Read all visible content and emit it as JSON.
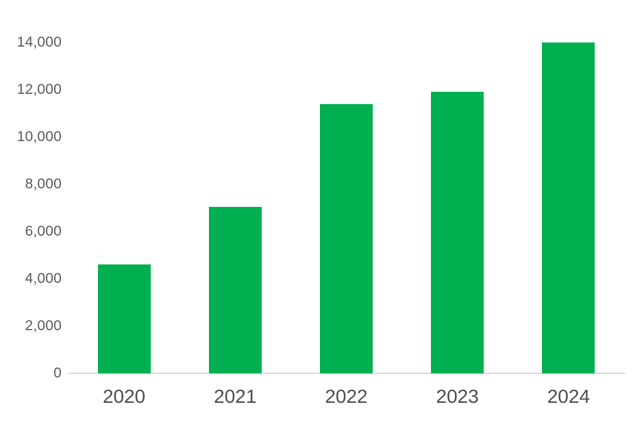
{
  "chart_data": {
    "type": "bar",
    "title": "",
    "xlabel": "",
    "ylabel": "",
    "categories": [
      "2020",
      "2021",
      "2022",
      "2023",
      "2024"
    ],
    "values": [
      4600,
      7050,
      11400,
      11900,
      14000
    ],
    "ylim": [
      0,
      14000
    ],
    "ytick_interval": 2000,
    "ytick_labels": [
      "0",
      "2,000",
      "4,000",
      "6,000",
      "8,000",
      "10,000",
      "12,000",
      "14,000"
    ],
    "grid": false,
    "legend_position": "none",
    "bar_color": "#00B050",
    "axis_line_color": "#D9D9D9",
    "ytick_label_color": "#595959",
    "xtick_label_color": "#4D4D4D",
    "background_color": "#FFFFFF"
  }
}
